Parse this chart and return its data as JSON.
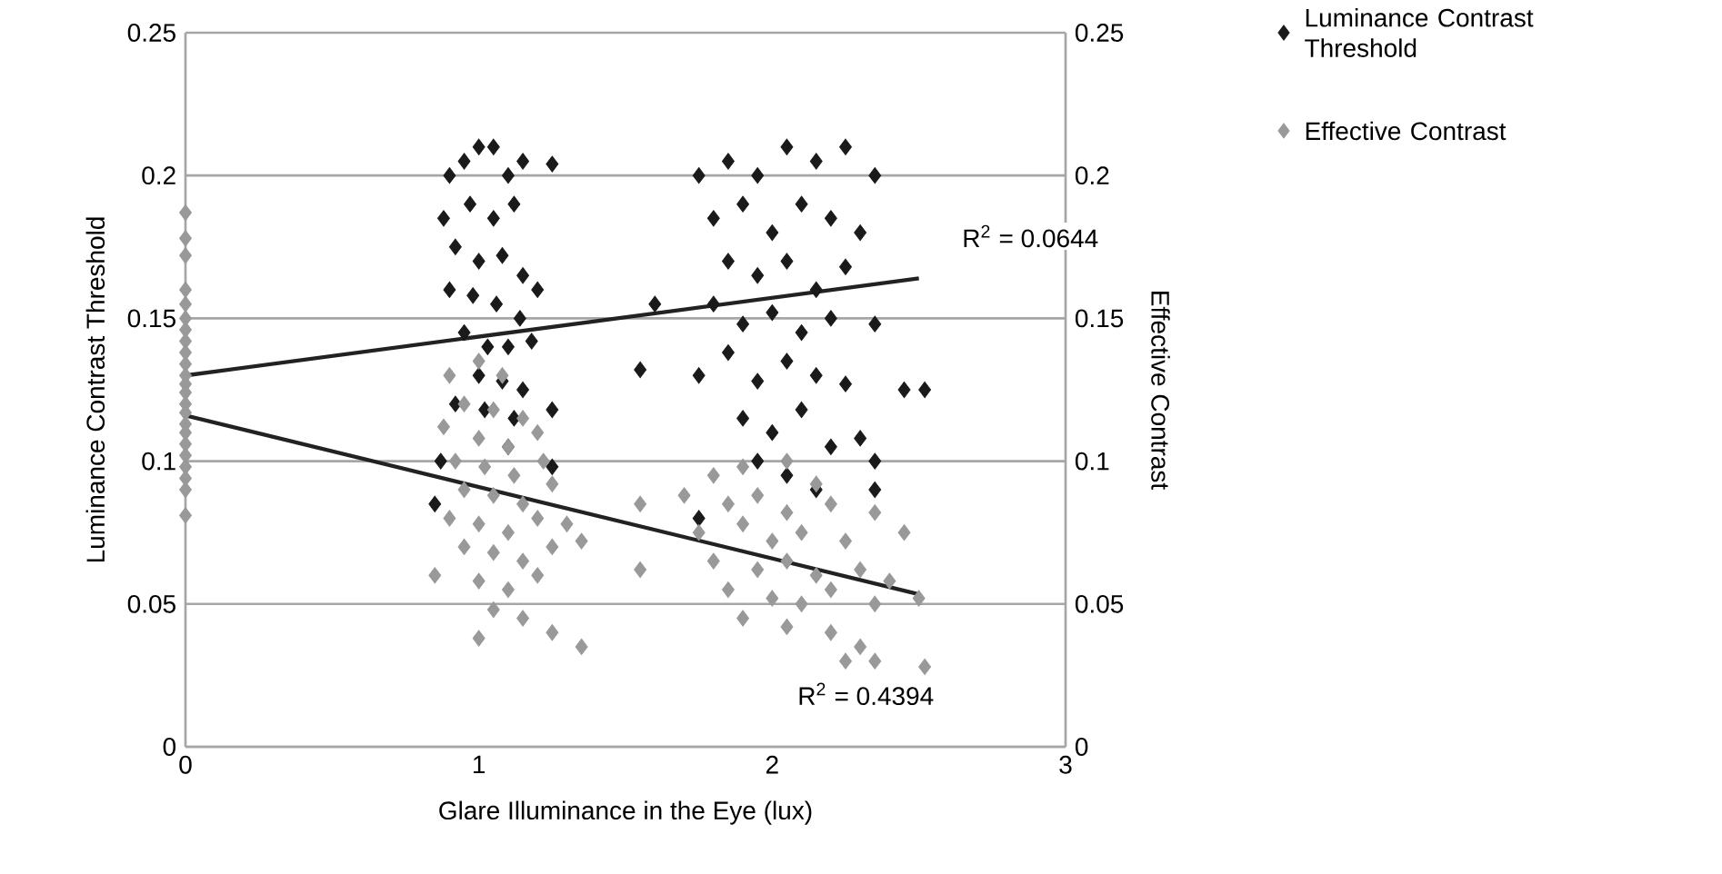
{
  "chart_data": {
    "type": "scatter",
    "xlabel": "Glare Illuminance in the Eye (lux)",
    "ylabel": "Luminance Contrast Threshold",
    "y2label": "Effective Contrast",
    "xlim": [
      0,
      3
    ],
    "xticks": [
      0,
      1,
      2,
      3
    ],
    "ylim": [
      0,
      0.25
    ],
    "yticks": [
      0,
      0.05,
      0.1,
      0.15,
      0.2,
      0.25
    ],
    "y2lim": [
      0,
      0.25
    ],
    "y2ticks": [
      0,
      0.05,
      0.1,
      0.15,
      0.2,
      0.25
    ],
    "grid": "y",
    "legend": "top right",
    "marker": "diamond",
    "annotations": [
      "R$^{2}$ = 0.0644",
      "R$^{2}$ = 0.4394"
    ],
    "series": [
      {
        "name": "Luminance Contrast Threshold",
        "color": "#1a1a1a",
        "x": [
          0.9,
          0.95,
          1.0,
          1.05,
          1.1,
          1.15,
          1.25,
          0.88,
          0.97,
          1.05,
          1.12,
          0.92,
          1.0,
          1.08,
          1.15,
          0.9,
          0.98,
          1.06,
          1.14,
          1.2,
          0.95,
          1.03,
          1.1,
          1.18,
          1.0,
          1.08,
          1.15,
          0.92,
          1.02,
          1.12,
          1.25,
          1.1,
          1.25,
          0.85,
          0.87,
          1.75,
          1.85,
          1.95,
          2.05,
          2.15,
          2.25,
          2.35,
          1.8,
          1.9,
          2.0,
          2.1,
          2.2,
          2.3,
          1.85,
          1.95,
          2.05,
          2.15,
          2.25,
          1.6,
          1.8,
          1.9,
          2.0,
          2.1,
          2.2,
          2.35,
          1.55,
          1.75,
          1.85,
          1.95,
          2.05,
          2.15,
          2.25,
          2.45,
          2.52,
          1.9,
          2.0,
          2.1,
          2.2,
          2.3,
          1.95,
          2.05,
          2.35,
          2.15,
          2.35,
          1.75
        ],
        "values": [
          0.2,
          0.205,
          0.21,
          0.21,
          0.2,
          0.205,
          0.204,
          0.185,
          0.19,
          0.185,
          0.19,
          0.175,
          0.17,
          0.172,
          0.165,
          0.16,
          0.158,
          0.155,
          0.15,
          0.16,
          0.145,
          0.14,
          0.14,
          0.142,
          0.13,
          0.128,
          0.125,
          0.12,
          0.118,
          0.115,
          0.118,
          0.105,
          0.098,
          0.085,
          0.1,
          0.2,
          0.205,
          0.2,
          0.21,
          0.205,
          0.21,
          0.2,
          0.185,
          0.19,
          0.18,
          0.19,
          0.185,
          0.18,
          0.17,
          0.165,
          0.17,
          0.16,
          0.168,
          0.155,
          0.155,
          0.148,
          0.152,
          0.145,
          0.15,
          0.148,
          0.132,
          0.13,
          0.138,
          0.128,
          0.135,
          0.13,
          0.127,
          0.125,
          0.125,
          0.115,
          0.11,
          0.118,
          0.105,
          0.108,
          0.1,
          0.095,
          0.1,
          0.09,
          0.09,
          0.08
        ]
      },
      {
        "name": "Effective Contrast",
        "color": "#999999",
        "axis": "y2",
        "x": [
          0,
          0,
          0,
          0,
          0,
          0,
          0,
          0,
          0,
          0,
          0,
          0,
          0,
          0,
          0,
          0,
          0,
          0,
          0,
          0,
          0,
          0,
          0,
          0.9,
          1.0,
          1.08,
          0.95,
          1.05,
          1.15,
          0.88,
          1.0,
          1.1,
          1.2,
          0.92,
          1.02,
          1.12,
          1.22,
          0.95,
          1.05,
          1.15,
          1.25,
          0.9,
          1.0,
          1.1,
          1.2,
          1.3,
          0.95,
          1.05,
          1.15,
          1.25,
          1.35,
          0.85,
          1.0,
          1.1,
          1.2,
          1.05,
          1.15,
          1.25,
          1.35,
          1.0,
          1.55,
          1.55,
          1.8,
          1.9,
          2.05,
          2.15,
          1.7,
          1.85,
          1.95,
          2.05,
          2.2,
          2.35,
          1.75,
          1.9,
          2.0,
          2.1,
          2.25,
          2.45,
          1.8,
          1.95,
          2.05,
          2.15,
          2.3,
          2.4,
          1.85,
          2.0,
          2.1,
          2.2,
          2.35,
          2.5,
          1.9,
          2.05,
          2.2,
          2.3,
          2.25,
          2.35,
          2.52
        ],
        "values": [
          0.187,
          0.178,
          0.172,
          0.16,
          0.155,
          0.15,
          0.146,
          0.142,
          0.138,
          0.134,
          0.13,
          0.127,
          0.124,
          0.12,
          0.117,
          0.113,
          0.11,
          0.106,
          0.102,
          0.098,
          0.094,
          0.09,
          0.081,
          0.13,
          0.135,
          0.13,
          0.12,
          0.118,
          0.115,
          0.112,
          0.108,
          0.105,
          0.11,
          0.1,
          0.098,
          0.095,
          0.1,
          0.09,
          0.088,
          0.085,
          0.092,
          0.08,
          0.078,
          0.075,
          0.08,
          0.078,
          0.07,
          0.068,
          0.065,
          0.07,
          0.072,
          0.06,
          0.058,
          0.055,
          0.06,
          0.048,
          0.045,
          0.04,
          0.035,
          0.038,
          0.085,
          0.062,
          0.095,
          0.098,
          0.1,
          0.092,
          0.088,
          0.085,
          0.088,
          0.082,
          0.085,
          0.082,
          0.075,
          0.078,
          0.072,
          0.075,
          0.072,
          0.075,
          0.065,
          0.062,
          0.065,
          0.06,
          0.062,
          0.058,
          0.055,
          0.052,
          0.05,
          0.055,
          0.05,
          0.052,
          0.045,
          0.042,
          0.04,
          0.035,
          0.03,
          0.03,
          0.028
        ]
      },
      {
        "type": "line",
        "marker": "none",
        "color": "#222222",
        "x": [
          0,
          2.5
        ],
        "values": [
          0.13,
          0.164
        ]
      },
      {
        "type": "line",
        "marker": "none",
        "color": "#222222",
        "axis": "y2",
        "x": [
          0,
          2.5
        ],
        "values": [
          0.116,
          0.0534
        ]
      }
    ]
  }
}
